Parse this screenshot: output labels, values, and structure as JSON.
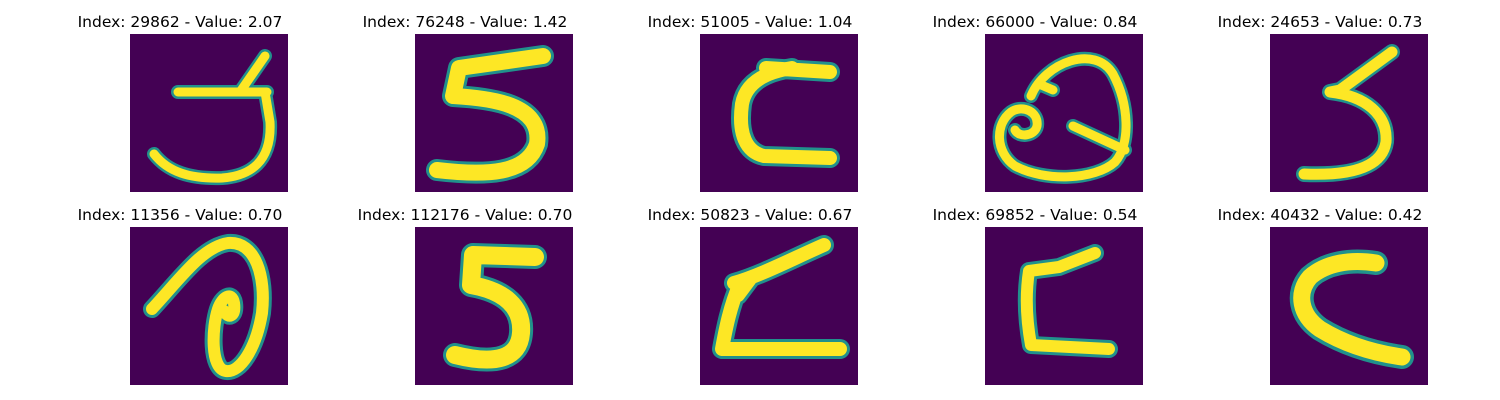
{
  "colors": {
    "background": "#440154",
    "stroke": "#fde725",
    "edge": "#21918c"
  },
  "panels": [
    {
      "title": "Index: 29862 - Value: 2.07",
      "glyph": "glyph-1"
    },
    {
      "title": "Index: 76248 - Value: 1.42",
      "glyph": "glyph-2"
    },
    {
      "title": "Index: 51005 - Value: 1.04",
      "glyph": "glyph-3"
    },
    {
      "title": "Index: 66000 - Value: 0.84",
      "glyph": "glyph-4"
    },
    {
      "title": "Index: 24653 - Value: 0.73",
      "glyph": "glyph-5"
    },
    {
      "title": "Index: 11356 - Value: 0.70",
      "glyph": "glyph-6"
    },
    {
      "title": "Index: 112176 - Value: 0.70",
      "glyph": "glyph-7"
    },
    {
      "title": "Index: 50823 - Value: 0.67",
      "glyph": "glyph-8"
    },
    {
      "title": "Index: 69852 - Value: 0.54",
      "glyph": "glyph-9"
    },
    {
      "title": "Index: 40432 - Value: 0.42",
      "glyph": "glyph-10"
    }
  ]
}
